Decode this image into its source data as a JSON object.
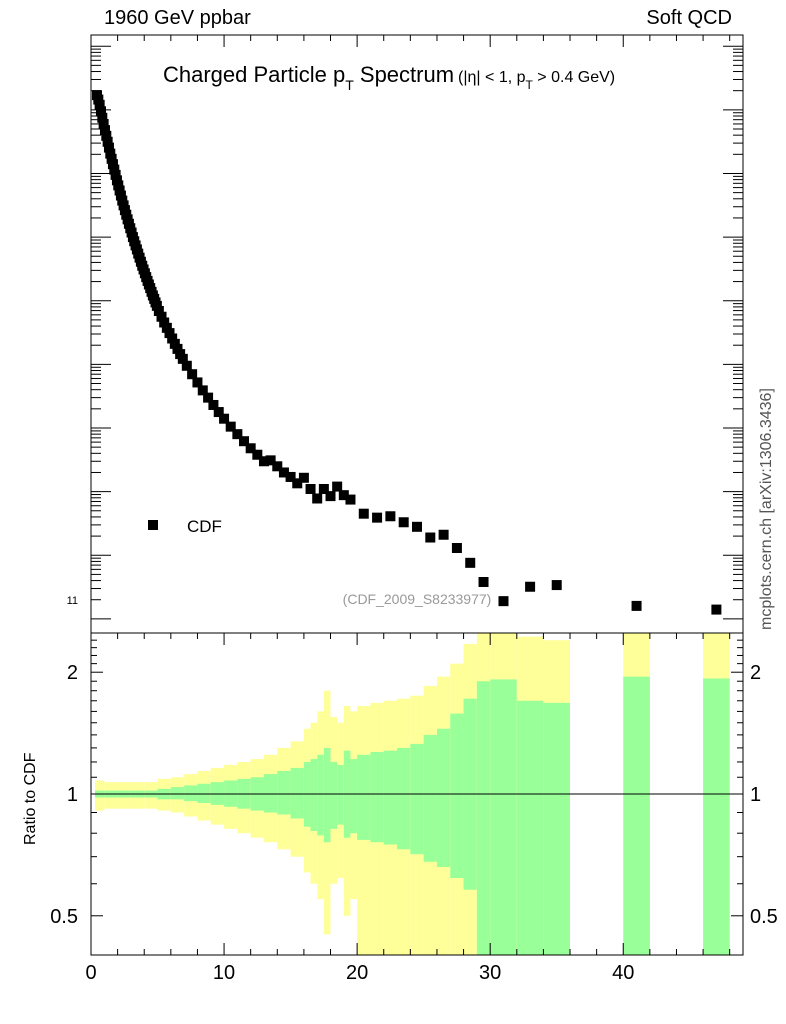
{
  "header": {
    "left": "1960 GeV ppbar",
    "right": "Soft QCD"
  },
  "side_label": "mcplots.cern.ch [arXiv:1306.3436]",
  "colors": {
    "data_marker": "#000000",
    "stat_band": "#99ff99",
    "total_band": "#ffff99",
    "reference_line": "#000000",
    "watermark": "#999999"
  },
  "chart_data": [
    {
      "type": "scatter",
      "title": "Charged Particle p_T Spectrum",
      "title_parts": {
        "main_text": "Charged Particle p",
        "main_sub": "T",
        "main_after": " Spectrum",
        "cut_text": "(|η| < 1, p",
        "cut_sub": "T",
        "cut_after": " > 0.4 GeV)"
      },
      "yscale": "log",
      "y_tick_label": "11",
      "legend": {
        "placement": "bottom-left",
        "entries": [
          "CDF"
        ]
      },
      "watermark": "(CDF_2009_S8233977)",
      "series": [
        {
          "name": "CDF",
          "marker": "square",
          "x": [
            0.45,
            0.55,
            0.65,
            0.75,
            0.85,
            0.95,
            1.05,
            1.15,
            1.25,
            1.35,
            1.45,
            1.55,
            1.65,
            1.75,
            1.85,
            1.95,
            2.05,
            2.15,
            2.25,
            2.35,
            2.45,
            2.55,
            2.65,
            2.75,
            2.85,
            2.95,
            3.05,
            3.15,
            3.25,
            3.35,
            3.45,
            3.55,
            3.65,
            3.75,
            3.85,
            3.95,
            4.05,
            4.15,
            4.25,
            4.35,
            4.45,
            4.55,
            4.65,
            4.75,
            4.85,
            4.95,
            5.1,
            5.3,
            5.5,
            5.7,
            5.9,
            6.1,
            6.3,
            6.5,
            6.7,
            6.9,
            7.2,
            7.6,
            8.0,
            8.4,
            8.8,
            9.2,
            9.6,
            10.0,
            10.5,
            11.0,
            11.5,
            12.0,
            12.5,
            13.0,
            13.5,
            14.0,
            14.5,
            15.0,
            15.5,
            16.0,
            16.5,
            17.0,
            17.5,
            18.0,
            18.5,
            19.0,
            19.5,
            20.5,
            21.5,
            22.5,
            23.5,
            24.5,
            25.5,
            26.5,
            27.5,
            28.5,
            29.5,
            31.0,
            33.0,
            35.0,
            41.0,
            47.0
          ],
          "y": [
            1700000000.0,
            1450000000.0,
            1200000000.0,
            950000000.0,
            750000000.0,
            600000000.0,
            480000000.0,
            390000000.0,
            315000000.0,
            255000000.0,
            205000000.0,
            170000000.0,
            140000000.0,
            115000000.0,
            95000000.0,
            78000000.0,
            65000000.0,
            54000000.0,
            45000000.0,
            37500000.0,
            31500000.0,
            26500000.0,
            22500000.0,
            19000000.0,
            16200000.0,
            13800000.0,
            11800000.0,
            10000000.0,
            8600000.0,
            7400000.0,
            6400000.0,
            5500000.0,
            4750000.0,
            4100000.0,
            3550000.0,
            3100000.0,
            2700000.0,
            2350000.0,
            2050000.0,
            1800000.0,
            1580000.0,
            1380000.0,
            1210000.0,
            1070000.0,
            940000.0,
            830000.0,
            690000.0,
            560000.0,
            455000.0,
            375000.0,
            310000.0,
            255000.0,
            210000.0,
            175000.0,
            145000.0,
            122000.0,
            95000.0,
            70000.0,
            52000.0,
            39000.0,
            30000.0,
            23000.0,
            17800.0,
            14000.0,
            10500.0,
            8000.0,
            6200.0,
            4800.0,
            3800.0,
            3000.0,
            3100.0,
            2500.0,
            2000.0,
            1700.0,
            1350.0,
            1650.0,
            1100.0,
            780.0,
            1100.0,
            850.0,
            1200.0,
            880.0,
            750.0,
            450.0,
            390.0,
            410.0,
            330.0,
            280.0,
            190.0,
            210.0,
            130.0,
            76.0,
            38.0,
            19.0,
            32.0,
            34.0,
            16.0,
            14.0
          ]
        }
      ]
    },
    {
      "type": "area",
      "ylabel": "Ratio to CDF",
      "yscale": "log",
      "ylim": [
        0.4,
        2.5
      ],
      "xlim": [
        0,
        49
      ],
      "x_ticks": [
        0,
        10,
        20,
        30,
        40
      ],
      "x_tick_labels": [
        "0",
        "10",
        "20",
        "30",
        "40"
      ],
      "y_ticks": [
        0.5,
        1,
        2
      ],
      "y_tick_labels": [
        "0.5",
        "1",
        "2"
      ],
      "reference_value": 1,
      "bins": [
        [
          0.3,
          1.0,
          1.02,
          1.08,
          0.98,
          0.91
        ],
        [
          1.0,
          2.0,
          1.02,
          1.07,
          0.98,
          0.92
        ],
        [
          2.0,
          3.0,
          1.02,
          1.07,
          0.98,
          0.92
        ],
        [
          3.0,
          4.0,
          1.02,
          1.07,
          0.98,
          0.92
        ],
        [
          4.0,
          5.0,
          1.02,
          1.07,
          0.98,
          0.92
        ],
        [
          5.0,
          6.0,
          1.03,
          1.09,
          0.97,
          0.91
        ],
        [
          6.0,
          7.0,
          1.04,
          1.1,
          0.97,
          0.9
        ],
        [
          7.0,
          8.0,
          1.05,
          1.12,
          0.96,
          0.88
        ],
        [
          8.0,
          9.0,
          1.06,
          1.14,
          0.95,
          0.86
        ],
        [
          9.0,
          10.0,
          1.07,
          1.16,
          0.94,
          0.84
        ],
        [
          10.0,
          11.0,
          1.08,
          1.18,
          0.93,
          0.82
        ],
        [
          11.0,
          12.0,
          1.09,
          1.2,
          0.92,
          0.8
        ],
        [
          12.0,
          13.0,
          1.1,
          1.22,
          0.91,
          0.78
        ],
        [
          13.0,
          14.0,
          1.12,
          1.25,
          0.9,
          0.76
        ],
        [
          14.0,
          15.0,
          1.14,
          1.3,
          0.89,
          0.73
        ],
        [
          15.0,
          16.0,
          1.16,
          1.35,
          0.87,
          0.7
        ],
        [
          16.0,
          16.5,
          1.2,
          1.45,
          0.83,
          0.64
        ],
        [
          16.5,
          17.0,
          1.22,
          1.5,
          0.81,
          0.6
        ],
        [
          17.0,
          17.5,
          1.25,
          1.6,
          0.79,
          0.55
        ],
        [
          17.5,
          18.0,
          1.3,
          1.8,
          0.76,
          0.45
        ],
        [
          18.0,
          18.5,
          1.2,
          1.55,
          0.82,
          0.6
        ],
        [
          18.5,
          19.0,
          1.18,
          1.5,
          0.84,
          0.62
        ],
        [
          19.0,
          19.5,
          1.28,
          1.65,
          0.78,
          0.5
        ],
        [
          19.5,
          20.0,
          1.22,
          1.6,
          0.8,
          0.55
        ],
        [
          20.0,
          21.0,
          1.25,
          1.65,
          0.77,
          0.4
        ],
        [
          21.0,
          22.0,
          1.27,
          1.68,
          0.76,
          0.4
        ],
        [
          22.0,
          23.0,
          1.28,
          1.7,
          0.75,
          0.4
        ],
        [
          23.0,
          24.0,
          1.3,
          1.72,
          0.73,
          0.4
        ],
        [
          24.0,
          25.0,
          1.33,
          1.75,
          0.71,
          0.4
        ],
        [
          25.0,
          26.0,
          1.4,
          1.85,
          0.68,
          0.4
        ],
        [
          26.0,
          27.0,
          1.45,
          1.95,
          0.66,
          0.4
        ],
        [
          27.0,
          28.0,
          1.58,
          2.1,
          0.62,
          0.4
        ],
        [
          28.0,
          29.0,
          1.72,
          2.35,
          0.58,
          0.4
        ],
        [
          29.0,
          30.0,
          1.9,
          2.5,
          0.4,
          0.4
        ],
        [
          30.0,
          32.0,
          1.92,
          2.5,
          0.4,
          0.4
        ],
        [
          32.0,
          34.0,
          1.7,
          2.45,
          0.4,
          0.4
        ],
        [
          34.0,
          36.0,
          1.68,
          2.4,
          0.4,
          0.4
        ],
        [
          40.0,
          42.0,
          1.95,
          2.5,
          0.4,
          0.4
        ],
        [
          46.0,
          48.0,
          1.93,
          2.5,
          0.4,
          0.4
        ]
      ]
    }
  ]
}
